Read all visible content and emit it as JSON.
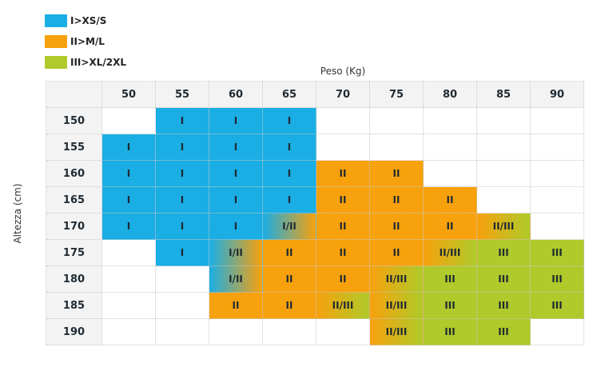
{
  "legend": [
    {
      "label": "I>XS/S",
      "color": "#1aaee5"
    },
    {
      "label": "II>M/L",
      "color": "#f7a10d"
    },
    {
      "label": "III>XL/2XL",
      "color": "#afca2a"
    }
  ],
  "chart_data": {
    "type": "table",
    "title": "",
    "xlabel": "Peso (Kg)",
    "ylabel": "Altezza (cm)",
    "columns": [
      "50",
      "55",
      "60",
      "65",
      "70",
      "75",
      "80",
      "85",
      "90"
    ],
    "rows": [
      "150",
      "155",
      "160",
      "165",
      "170",
      "175",
      "180",
      "185",
      "190"
    ],
    "cells": [
      [
        "",
        "I",
        "I",
        "I",
        "",
        "",
        "",
        "",
        ""
      ],
      [
        "I",
        "I",
        "I",
        "I",
        "",
        "",
        "",
        "",
        ""
      ],
      [
        "I",
        "I",
        "I",
        "I",
        "II",
        "II",
        "",
        "",
        ""
      ],
      [
        "I",
        "I",
        "I",
        "I",
        "II",
        "II",
        "II",
        "",
        ""
      ],
      [
        "I",
        "I",
        "I",
        "I/II",
        "II",
        "II",
        "II",
        "II/III",
        ""
      ],
      [
        "",
        "I",
        "I/II",
        "II",
        "II",
        "II",
        "II/III",
        "III",
        "III"
      ],
      [
        "",
        "",
        "I/II",
        "II",
        "II",
        "II/III",
        "III",
        "III",
        "III"
      ],
      [
        "",
        "",
        "II",
        "II",
        "II/III",
        "II/III",
        "III",
        "III",
        "III"
      ],
      [
        "",
        "",
        "",
        "",
        "",
        "II/III",
        "III",
        "III",
        ""
      ]
    ],
    "colors": {
      "I": "#1aaee5",
      "II": "#f7a10d",
      "III": "#afca2a"
    }
  }
}
